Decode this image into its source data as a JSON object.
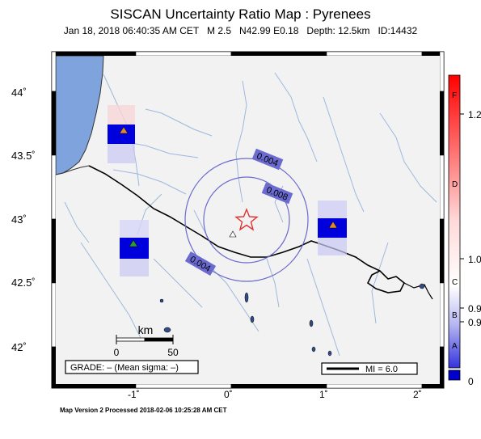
{
  "header": {
    "title": "SISCAN Uncertainty Ratio Map : Pyrenees",
    "subtitle": "Jan 18, 2018 06:40:35 AM CET   M 2.5   N42.99 E0.18   Depth: 12.5km   ID:14432"
  },
  "axes": {
    "y_ticks": [
      "44˚",
      "43.5˚",
      "43˚",
      "42.5˚",
      "42˚"
    ],
    "x_ticks": [
      "-1˚",
      "0˚",
      "1˚",
      "2˚"
    ]
  },
  "contours": {
    "outer_label": "0.004",
    "inner_label": "0.008",
    "lower_label": "0.004"
  },
  "scale_bar": {
    "unit": "km",
    "start": "0",
    "end": "50"
  },
  "grade_box": {
    "text": "GRADE: – (Mean sigma: –)"
  },
  "mi_legend": {
    "text": "MI = 6.0"
  },
  "colorbar": {
    "letters": [
      "F",
      "D",
      "C",
      "B",
      "A"
    ],
    "values": [
      "1.2",
      "1.0",
      "0.9",
      "0.9",
      "0"
    ],
    "colors": {
      "top": "#ff0000",
      "mid": "#ffffff",
      "bottom": "#0000cc"
    }
  },
  "map_colors": {
    "land": "#f2f2f2",
    "sea": "#7fa4dd",
    "rivers": "#9db8dd",
    "border": "#000000",
    "epicenter": "#e03030",
    "contour": "#6a6ad0",
    "station_warm": "#e08a2a",
    "station_green": "#2aa02a"
  },
  "footer": {
    "text": "Map Version 2 Processed 2018-02-06 10:25:28 AM CET"
  }
}
